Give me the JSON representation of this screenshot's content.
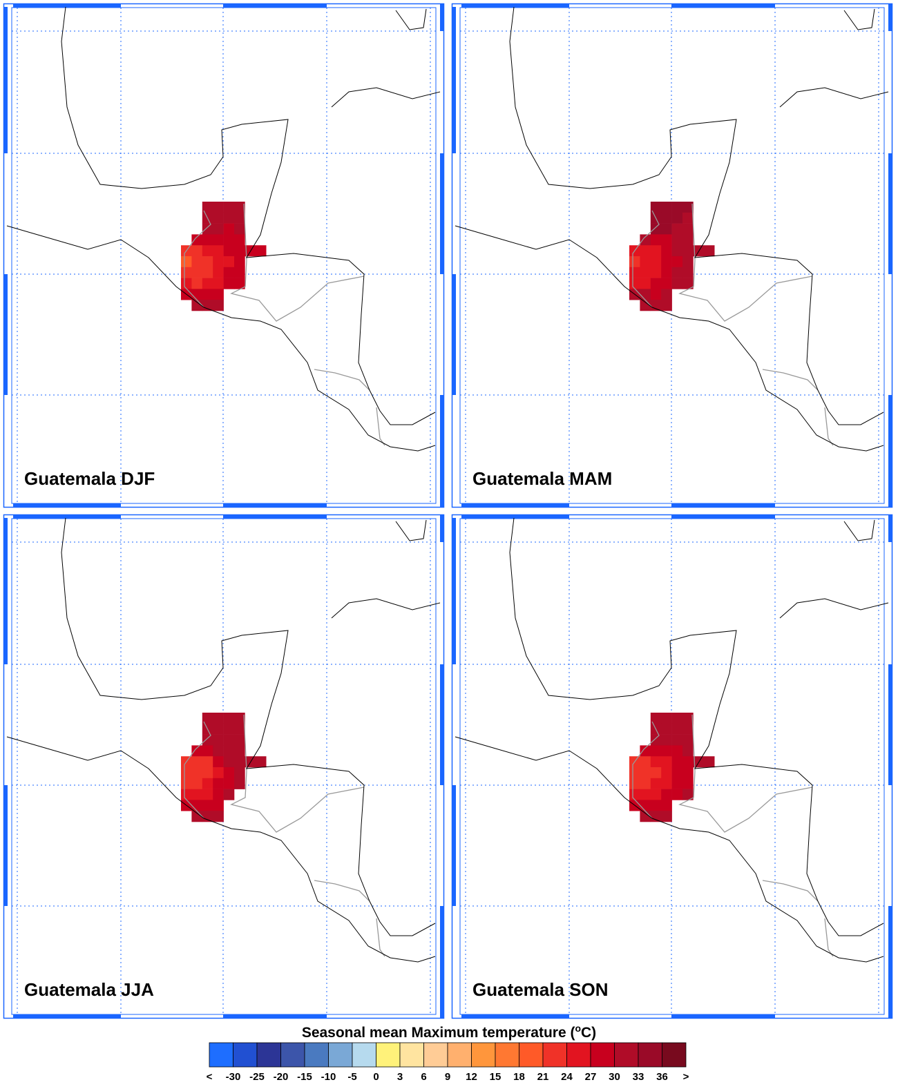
{
  "panels": [
    {
      "title": "Guatemala DJF",
      "cells": [
        [
          null,
          null,
          31,
          31,
          31,
          31,
          null,
          null
        ],
        [
          null,
          null,
          31,
          30,
          30,
          31,
          null,
          null
        ],
        [
          null,
          null,
          30,
          30,
          29,
          31,
          null,
          null
        ],
        [
          null,
          29,
          28,
          27,
          28,
          29,
          null,
          null
        ],
        [
          22,
          21,
          24,
          24,
          27,
          28,
          29,
          29
        ],
        [
          20,
          21,
          22,
          24,
          26,
          28,
          null,
          null
        ],
        [
          22,
          22,
          23,
          25,
          27,
          29,
          null,
          null
        ],
        [
          25,
          23,
          24,
          26,
          28,
          29,
          null,
          null
        ],
        [
          28,
          28,
          27,
          28,
          null,
          null,
          null,
          null
        ],
        [
          null,
          31,
          31,
          31,
          null,
          null,
          null,
          null
        ]
      ]
    },
    {
      "title": "Guatemala MAM",
      "cells": [
        [
          null,
          null,
          34,
          34,
          33,
          33,
          null,
          null
        ],
        [
          null,
          null,
          34,
          33,
          33,
          32,
          null,
          null
        ],
        [
          null,
          null,
          33,
          33,
          32,
          32,
          null,
          null
        ],
        [
          null,
          31,
          29,
          29,
          31,
          32,
          null,
          null
        ],
        [
          25,
          24,
          26,
          27,
          30,
          31,
          32,
          32
        ],
        [
          23,
          24,
          25,
          27,
          29,
          31,
          null,
          null
        ],
        [
          24,
          25,
          26,
          28,
          30,
          31,
          null,
          null
        ],
        [
          26,
          25,
          27,
          29,
          31,
          32,
          null,
          null
        ],
        [
          30,
          30,
          29,
          30,
          null,
          null,
          null,
          null
        ],
        [
          null,
          32,
          32,
          32,
          null,
          null,
          null,
          null
        ]
      ]
    },
    {
      "title": "Guatemala JJA",
      "cells": [
        [
          null,
          null,
          31,
          32,
          32,
          31,
          null,
          null
        ],
        [
          null,
          null,
          31,
          32,
          32,
          31,
          null,
          null
        ],
        [
          null,
          null,
          31,
          31,
          31,
          31,
          null,
          null
        ],
        [
          null,
          27,
          27,
          30,
          31,
          31,
          null,
          null
        ],
        [
          23,
          22,
          23,
          27,
          30,
          30,
          30,
          30
        ],
        [
          22,
          23,
          23,
          26,
          29,
          30,
          null,
          null
        ],
        [
          23,
          23,
          24,
          27,
          29,
          30,
          null,
          null
        ],
        [
          26,
          24,
          25,
          28,
          30,
          null,
          null,
          null
        ],
        [
          29,
          28,
          28,
          29,
          null,
          null,
          null,
          null
        ],
        [
          null,
          31,
          31,
          31,
          null,
          null,
          null,
          null
        ]
      ]
    },
    {
      "title": "Guatemala SON",
      "cells": [
        [
          null,
          null,
          31,
          31,
          31,
          31,
          null,
          null
        ],
        [
          null,
          null,
          31,
          31,
          30,
          30,
          null,
          null
        ],
        [
          null,
          null,
          30,
          30,
          30,
          30,
          null,
          null
        ],
        [
          null,
          28,
          27,
          28,
          29,
          30,
          null,
          null
        ],
        [
          23,
          22,
          24,
          26,
          28,
          29,
          30,
          30
        ],
        [
          21,
          22,
          23,
          25,
          27,
          29,
          null,
          null
        ],
        [
          23,
          23,
          24,
          26,
          28,
          29,
          null,
          null
        ],
        [
          26,
          24,
          25,
          27,
          29,
          30,
          null,
          null
        ],
        [
          29,
          29,
          28,
          29,
          null,
          null,
          null,
          null
        ],
        [
          null,
          31,
          31,
          31,
          null,
          null,
          null,
          null
        ]
      ]
    }
  ],
  "colorbar": {
    "title": "Seasonal mean Maximum temperature (",
    "title_sup": "o",
    "title_end": "C)",
    "low_label": "<",
    "high_label": ">",
    "levels": [
      -30,
      -25,
      -20,
      -15,
      -10,
      -5,
      0,
      3,
      6,
      9,
      12,
      15,
      18,
      21,
      24,
      27,
      30,
      33,
      36
    ],
    "colors": [
      "#1e6eff",
      "#2150d2",
      "#2c3596",
      "#3c55aa",
      "#4a7ac0",
      "#7aa8d6",
      "#b6daee",
      "#fff27a",
      "#ffe4a0",
      "#ffcc96",
      "#ffb06e",
      "#ff963c",
      "#ff7832",
      "#ff5a28",
      "#f03228",
      "#e21420",
      "#c8001e",
      "#b00c28",
      "#9a0a28",
      "#780a1e"
    ]
  }
}
